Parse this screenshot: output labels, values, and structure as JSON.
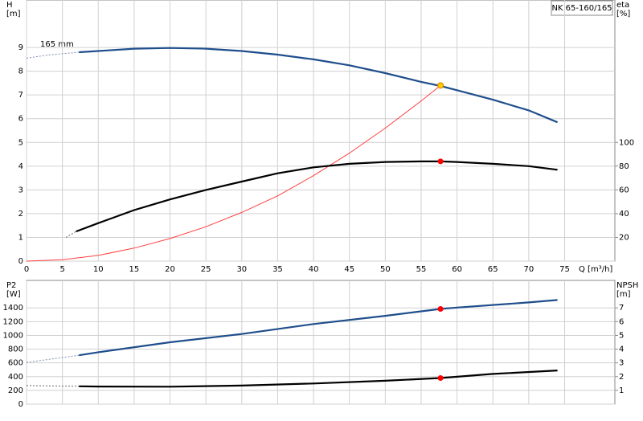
{
  "chart_data": [
    {
      "type": "line",
      "model_label": "NK 65-160/165",
      "curve_label": "165 mm",
      "ylabel": [
        "H",
        "[m]"
      ],
      "y2label": [
        "eta",
        "[%]"
      ],
      "xlabel": "Q [m³/h]",
      "xlim": [
        0,
        82
      ],
      "xticks": [
        0,
        5,
        10,
        15,
        20,
        25,
        30,
        35,
        40,
        45,
        50,
        55,
        60,
        65,
        70,
        75
      ],
      "ylim": [
        0,
        11
      ],
      "yticks": [
        0,
        1,
        2,
        3,
        4,
        5,
        6,
        7,
        8,
        9
      ],
      "y2lim": [
        0,
        220
      ],
      "y2ticks": [
        20,
        40,
        60,
        80,
        100
      ],
      "grid": true,
      "series": [
        {
          "axis": "y",
          "color": "#7a8db0",
          "dashed": true,
          "x": [
            0,
            3,
            7.3
          ],
          "values": [
            8.55,
            8.68,
            8.8
          ]
        },
        {
          "axis": "y",
          "color": "#1f4e8c",
          "x": [
            7.3,
            10,
            15,
            20,
            25,
            30,
            35,
            40,
            45,
            50,
            55,
            57.7,
            60,
            65,
            70,
            74
          ],
          "values": [
            8.8,
            8.85,
            8.95,
            8.98,
            8.95,
            8.85,
            8.7,
            8.5,
            8.25,
            7.92,
            7.55,
            7.38,
            7.2,
            6.8,
            6.35,
            5.85
          ]
        },
        {
          "axis": "y",
          "color": "#ff4040",
          "thin": true,
          "x": [
            0,
            5,
            10,
            15,
            20,
            25,
            30,
            35,
            40,
            45,
            50,
            55,
            57.7
          ],
          "values": [
            0,
            0.06,
            0.24,
            0.55,
            0.95,
            1.45,
            2.05,
            2.75,
            3.6,
            4.55,
            5.6,
            6.75,
            7.4
          ]
        },
        {
          "axis": "y2",
          "color": "#666666",
          "dashed": true,
          "x": [
            5.5,
            6.9
          ],
          "values": [
            20,
            25
          ]
        },
        {
          "axis": "y2",
          "color": "#000000",
          "x": [
            6.9,
            10,
            15,
            20,
            25,
            30,
            35,
            40,
            45,
            50,
            55,
            57.7,
            60,
            65,
            70,
            74
          ],
          "values": [
            25,
            32,
            43,
            52,
            60,
            67,
            74,
            79,
            82,
            83.5,
            84,
            84,
            83.5,
            82,
            80,
            77
          ]
        },
        {
          "axis": "y",
          "color": "#ffcc00",
          "point": true,
          "x": [
            57.7
          ],
          "values": [
            7.4
          ]
        },
        {
          "axis": "y2",
          "color": "#ff0000",
          "point": true,
          "x": [
            57.7
          ],
          "values": [
            84
          ]
        }
      ]
    },
    {
      "type": "line",
      "ylabel": [
        "P2",
        "[W]"
      ],
      "y2label": [
        "NPSH",
        "[m]"
      ],
      "xlim": [
        0,
        82
      ],
      "ylim": [
        0,
        1800
      ],
      "yticks": [
        0,
        200,
        400,
        600,
        800,
        1000,
        1200,
        1400
      ],
      "y2lim": [
        0,
        9
      ],
      "y2ticks": [
        1,
        2,
        3,
        4,
        5,
        6,
        7
      ],
      "grid": true,
      "series": [
        {
          "axis": "y",
          "color": "#7a8db0",
          "dashed": true,
          "x": [
            0,
            7.3
          ],
          "values": [
            607,
            711
          ]
        },
        {
          "axis": "y",
          "color": "#1f4e8c",
          "x": [
            7.3,
            10,
            20,
            30,
            40,
            50,
            57.7,
            60,
            70,
            74
          ],
          "values": [
            711,
            755,
            900,
            1020,
            1165,
            1285,
            1385,
            1405,
            1480,
            1515
          ]
        },
        {
          "axis": "y2",
          "color": "#666666",
          "dashed": true,
          "x": [
            0,
            7.3
          ],
          "values": [
            1.35,
            1.3
          ]
        },
        {
          "axis": "y2",
          "color": "#000000",
          "x": [
            7.3,
            10,
            20,
            30,
            40,
            50,
            57.7,
            65,
            74
          ],
          "values": [
            1.3,
            1.28,
            1.27,
            1.35,
            1.5,
            1.7,
            1.9,
            2.2,
            2.45
          ]
        },
        {
          "axis": "y",
          "color": "#ff0000",
          "point": true,
          "x": [
            57.7
          ],
          "values": [
            1385
          ]
        },
        {
          "axis": "y2",
          "color": "#ff0000",
          "point": true,
          "x": [
            57.7
          ],
          "values": [
            1.9
          ]
        }
      ]
    }
  ]
}
